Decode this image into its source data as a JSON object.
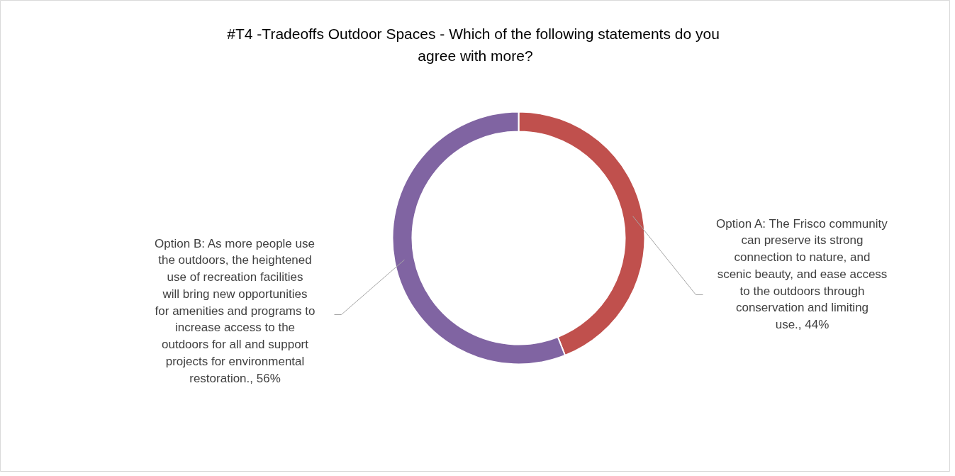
{
  "chart_data": {
    "type": "donut",
    "title": "#T4 -Tradeoffs Outdoor Spaces -  Which of the following statements do you agree with more?",
    "categories": [
      "Option A: The Frisco community can preserve its strong connection to nature, and scenic beauty, and ease access to the outdoors through conservation and limiting use., 44%",
      "Option B: As more people use the outdoors, the heightened use of recreation facilities will bring new opportunities for amenities and programs to increase access to the outdoors for all and support projects for environmental restoration., 56%"
    ],
    "values": [
      44,
      56
    ],
    "colors": [
      "#c0504d",
      "#8064a2"
    ]
  }
}
